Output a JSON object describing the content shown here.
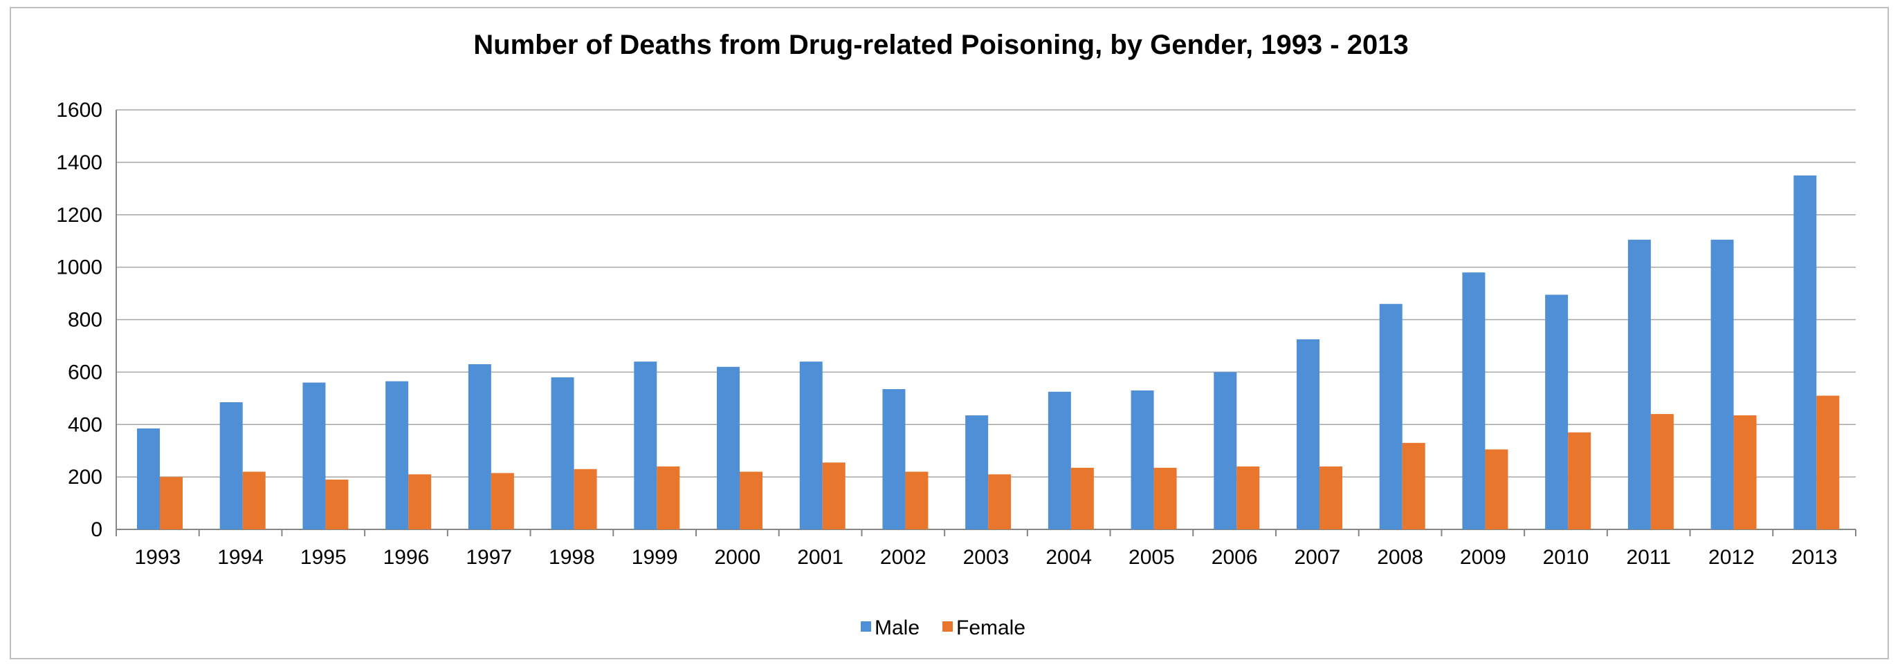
{
  "chart_data": {
    "type": "bar",
    "title": "Number of Deaths from Drug-related Poisoning, by Gender, 1993 - 2013",
    "xlabel": "",
    "ylabel": "",
    "categories": [
      "1993",
      "1994",
      "1995",
      "1996",
      "1997",
      "1998",
      "1999",
      "2000",
      "2001",
      "2002",
      "2003",
      "2004",
      "2005",
      "2006",
      "2007",
      "2008",
      "2009",
      "2010",
      "2011",
      "2012",
      "2013"
    ],
    "series": [
      {
        "name": "Male",
        "color": "#4f8fd6",
        "values": [
          385,
          485,
          560,
          565,
          630,
          580,
          640,
          620,
          640,
          535,
          435,
          525,
          530,
          600,
          725,
          860,
          980,
          895,
          1105,
          1105,
          1350
        ]
      },
      {
        "name": "Female",
        "color": "#e8762c",
        "values": [
          200,
          220,
          190,
          210,
          215,
          230,
          240,
          220,
          255,
          220,
          210,
          235,
          235,
          240,
          240,
          330,
          305,
          370,
          440,
          435,
          510
        ]
      }
    ],
    "ylim": [
      0,
      1600
    ],
    "yticks": [
      0,
      200,
      400,
      600,
      800,
      1000,
      1200,
      1400,
      1600
    ],
    "grid": true,
    "legend_position": "bottom"
  }
}
